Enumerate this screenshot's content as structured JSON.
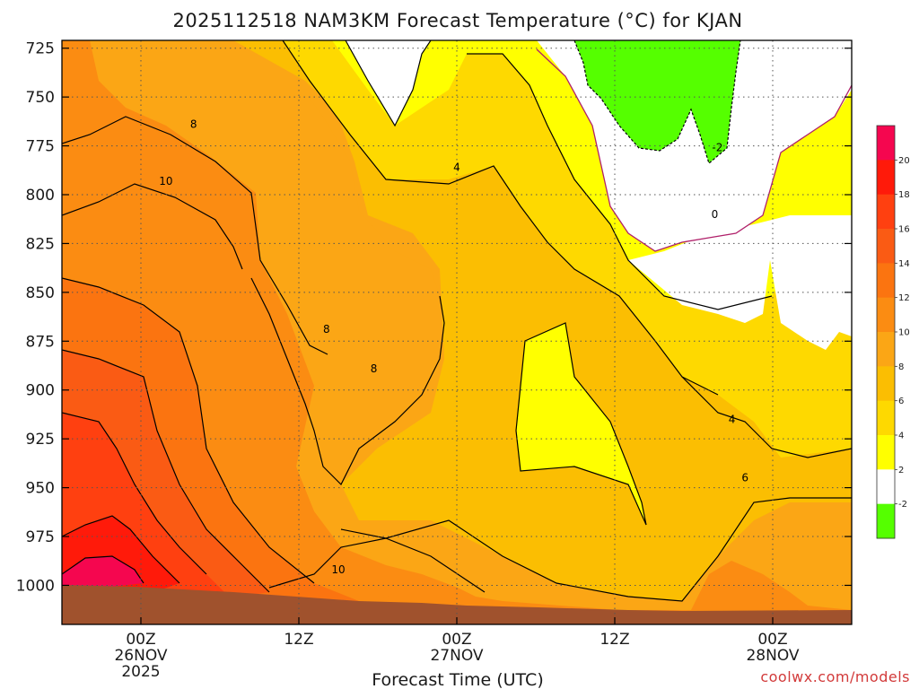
{
  "chart_data": {
    "type": "heatmap",
    "title": "2025112518 NAM3KM Forecast Temperature (°C) for KJAN",
    "xlabel": "Forecast Time (UTC)",
    "y_ticks": [
      "725",
      "750",
      "775",
      "800",
      "825",
      "850",
      "875",
      "900",
      "925",
      "950",
      "975",
      "1000"
    ],
    "y_tick_values": [
      725,
      750,
      775,
      800,
      825,
      850,
      875,
      900,
      925,
      950,
      975,
      1000
    ],
    "ylim": [
      1020,
      721
    ],
    "x_ticks": [
      {
        "line1": "00Z",
        "line2": "26NOV",
        "line3": "2025"
      },
      {
        "line1": "12Z",
        "line2": "",
        "line3": ""
      },
      {
        "line1": "00Z",
        "line2": "27NOV",
        "line3": ""
      },
      {
        "line1": "12Z",
        "line2": "",
        "line3": ""
      },
      {
        "line1": "00Z",
        "line2": "28NOV",
        "line3": ""
      }
    ],
    "x_tick_hours": [
      6,
      18,
      30,
      42,
      54
    ],
    "xlim_hours": [
      0,
      60
    ],
    "grid": true,
    "colorbar": {
      "labels": [
        "20",
        "18",
        "16",
        "14",
        "12",
        "10",
        "8",
        "6",
        "4",
        "2",
        "-2"
      ],
      "bands": [
        {
          "range": "20+",
          "color": "#f5064f"
        },
        {
          "range": "18-20",
          "color": "#ff1a0a"
        },
        {
          "range": "16-18",
          "color": "#ff4010"
        },
        {
          "range": "14-16",
          "color": "#fa5b14"
        },
        {
          "range": "12-14",
          "color": "#fb7410"
        },
        {
          "range": "10-12",
          "color": "#fb8c12"
        },
        {
          "range": "8-10",
          "color": "#fba615"
        },
        {
          "range": "6-8",
          "color": "#fbbe02"
        },
        {
          "range": "4-6",
          "color": "#fed900"
        },
        {
          "range": "2-4",
          "color": "#ffff00"
        },
        {
          "range": "-2-2",
          "color": "#ffffff"
        },
        {
          "range": "<-2",
          "color": "#55ff00"
        }
      ]
    },
    "contour_labels": [
      {
        "text": "8",
        "hour": 10.0,
        "pressure": 764
      },
      {
        "text": "10",
        "hour": 7.9,
        "pressure": 793
      },
      {
        "text": "4",
        "hour": 30.0,
        "pressure": 786
      },
      {
        "text": "0",
        "hour": 49.6,
        "pressure": 810
      },
      {
        "text": "-2",
        "hour": 49.8,
        "pressure": 776
      },
      {
        "text": "8",
        "hour": 20.1,
        "pressure": 869
      },
      {
        "text": "8",
        "hour": 23.7,
        "pressure": 889
      },
      {
        "text": "4",
        "hour": 50.9,
        "pressure": 915
      },
      {
        "text": "6",
        "hour": 51.9,
        "pressure": 945
      },
      {
        "text": "10",
        "hour": 21.0,
        "pressure": 992
      }
    ],
    "surface": {
      "color": "#a0522d",
      "label": ""
    }
  },
  "credit": "coolwx.com/models",
  "colors": {
    "background": "#ffffff",
    "terrain": "#a0522d",
    "grid": "#555555"
  }
}
